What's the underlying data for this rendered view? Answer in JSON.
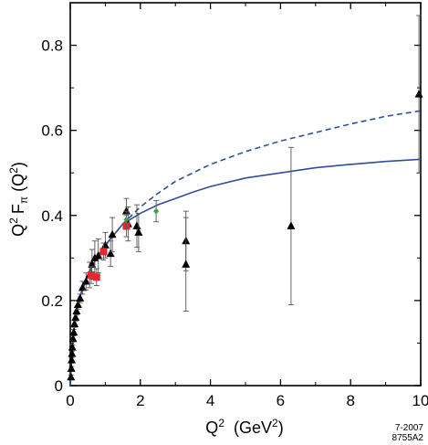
{
  "chart_data": {
    "type": "scatter",
    "xlabel": {
      "base": "Q",
      "sup": "2",
      "unit_pre": "(GeV",
      "unit_sup": "2",
      "unit_post": ")"
    },
    "ylabel": {
      "q": "Q",
      "sup": "2",
      "f": "F",
      "sub": "π",
      "arg_pre": "(Q",
      "arg_sup": "2",
      "arg_post": ")"
    },
    "xlim": [
      0,
      10
    ],
    "ylim": [
      0,
      0.9
    ],
    "x_ticks": [
      0,
      2,
      4,
      6,
      8,
      10
    ],
    "y_ticks": [
      0,
      0.2,
      0.4,
      0.6,
      0.8
    ],
    "x_tick_labels": [
      "0",
      "2",
      "4",
      "6",
      "8",
      "10"
    ],
    "y_tick_labels": [
      "0",
      "0.2",
      "0.4",
      "0.6",
      "0.8"
    ],
    "grid": false,
    "footnote": [
      "7-2007",
      "8755A2"
    ],
    "curves": [
      {
        "style": "dashed",
        "color": "#2f4e9c",
        "points": [
          [
            0.0,
            0.0
          ],
          [
            0.05,
            0.08
          ],
          [
            0.1,
            0.13
          ],
          [
            0.2,
            0.18
          ],
          [
            0.3,
            0.215
          ],
          [
            0.5,
            0.26
          ],
          [
            0.75,
            0.3
          ],
          [
            1.0,
            0.33
          ],
          [
            1.5,
            0.38
          ],
          [
            2.0,
            0.42
          ],
          [
            2.5,
            0.452
          ],
          [
            3.0,
            0.48
          ],
          [
            3.5,
            0.5
          ],
          [
            4.0,
            0.52
          ],
          [
            5.0,
            0.55
          ],
          [
            6.0,
            0.575
          ],
          [
            7.0,
            0.595
          ],
          [
            8.0,
            0.615
          ],
          [
            9.0,
            0.633
          ],
          [
            10.0,
            0.646
          ]
        ]
      },
      {
        "style": "solid",
        "color": "#2f4e9c",
        "points": [
          [
            0.0,
            0.0
          ],
          [
            0.05,
            0.08
          ],
          [
            0.1,
            0.13
          ],
          [
            0.2,
            0.18
          ],
          [
            0.3,
            0.215
          ],
          [
            0.5,
            0.26
          ],
          [
            0.75,
            0.3
          ],
          [
            1.0,
            0.33
          ],
          [
            1.5,
            0.38
          ],
          [
            2.0,
            0.405
          ],
          [
            2.5,
            0.425
          ],
          [
            3.0,
            0.44
          ],
          [
            3.5,
            0.455
          ],
          [
            4.0,
            0.468
          ],
          [
            5.0,
            0.488
          ],
          [
            6.0,
            0.5
          ],
          [
            7.0,
            0.512
          ],
          [
            8.0,
            0.52
          ],
          [
            9.0,
            0.527
          ],
          [
            10.0,
            0.532
          ]
        ]
      }
    ],
    "series": [
      {
        "marker": "triangle",
        "color": "#000000",
        "points": [
          {
            "x": 0.02,
            "y": 0.02,
            "err": 0.005
          },
          {
            "x": 0.03,
            "y": 0.04,
            "err": 0.005
          },
          {
            "x": 0.04,
            "y": 0.06,
            "err": 0.006
          },
          {
            "x": 0.05,
            "y": 0.075,
            "err": 0.006
          },
          {
            "x": 0.06,
            "y": 0.09,
            "err": 0.006
          },
          {
            "x": 0.08,
            "y": 0.11,
            "err": 0.007
          },
          {
            "x": 0.1,
            "y": 0.125,
            "err": 0.007
          },
          {
            "x": 0.12,
            "y": 0.145,
            "err": 0.008
          },
          {
            "x": 0.15,
            "y": 0.16,
            "err": 0.008
          },
          {
            "x": 0.18,
            "y": 0.175,
            "err": 0.009
          },
          {
            "x": 0.22,
            "y": 0.19,
            "err": 0.01
          },
          {
            "x": 0.28,
            "y": 0.205,
            "err": 0.01
          },
          {
            "x": 0.35,
            "y": 0.23,
            "err": 0.015
          },
          {
            "x": 0.45,
            "y": 0.245,
            "err": 0.02
          },
          {
            "x": 0.55,
            "y": 0.26,
            "err": 0.03
          },
          {
            "x": 0.62,
            "y": 0.285,
            "err": 0.035
          },
          {
            "x": 0.7,
            "y": 0.3,
            "err": 0.04
          },
          {
            "x": 0.8,
            "y": 0.305,
            "err": 0.04
          },
          {
            "x": 1.0,
            "y": 0.33,
            "err": 0.03
          },
          {
            "x": 1.15,
            "y": 0.31,
            "err": 0.03
          },
          {
            "x": 1.2,
            "y": 0.355,
            "err": 0.04
          },
          {
            "x": 1.6,
            "y": 0.41,
            "err": 0.03
          },
          {
            "x": 1.65,
            "y": 0.38,
            "err": 0.04
          },
          {
            "x": 1.9,
            "y": 0.375,
            "err": 0.05
          },
          {
            "x": 1.95,
            "y": 0.36,
            "err": 0.045
          },
          {
            "x": 3.3,
            "y": 0.34,
            "err": 0.07
          },
          {
            "x": 3.3,
            "y": 0.285,
            "err": 0.11
          },
          {
            "x": 6.3,
            "y": 0.375,
            "err": 0.185
          },
          {
            "x": 9.95,
            "y": 0.685,
            "err": 0.185
          }
        ]
      },
      {
        "marker": "square",
        "color": "#e8262d",
        "points": [
          {
            "x": 0.6,
            "y": 0.26,
            "err": 0.02
          },
          {
            "x": 0.75,
            "y": 0.255,
            "err": 0.02
          },
          {
            "x": 0.95,
            "y": 0.315,
            "err": 0.02
          },
          {
            "x": 1.6,
            "y": 0.375,
            "err": 0.025
          }
        ]
      },
      {
        "marker": "diamond",
        "color": "#3aa24a",
        "points": [
          {
            "x": 1.6,
            "y": 0.39,
            "err": 0.02
          },
          {
            "x": 2.45,
            "y": 0.41,
            "err": 0.025
          }
        ]
      }
    ]
  }
}
